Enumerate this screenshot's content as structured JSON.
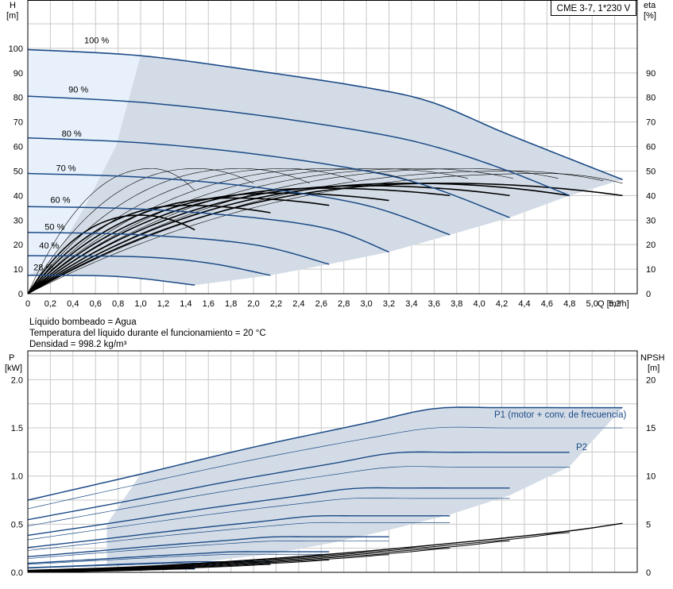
{
  "model_label": "CME 3-7, 1*230 V",
  "info_lines": [
    "Líquido bombeado = Agua",
    "Temperatura del líquido durante el funcionamiento = 20 °C",
    "Densidad = 998.2 kg/m³"
  ],
  "colors": {
    "curve": "#1b4a86",
    "area": "#d3dce6",
    "area_light": "#e8f1fb",
    "grid": "#c8c8c8",
    "eff": "#000000"
  },
  "chart_data": [
    {
      "type": "line",
      "name": "head",
      "xlabel": "Q [m³/h]",
      "ylabel_left": [
        "H",
        "[m]"
      ],
      "ylabel_right": [
        "eta",
        "[%]"
      ],
      "xlim": [
        0,
        5.4
      ],
      "ylim": [
        0,
        110
      ],
      "x_ticks": [
        "0",
        "0,2",
        "0,4",
        "0,6",
        "0,8",
        "1,0",
        "1,2",
        "1,4",
        "1,6",
        "1,8",
        "2,0",
        "2,2",
        "2,4",
        "2,6",
        "2,8",
        "3,0",
        "3,2",
        "3,4",
        "3,6",
        "3,8",
        "4,0",
        "4,2",
        "4,4",
        "4,6",
        "4,8",
        "5,0",
        "5,2"
      ],
      "y_ticks_left": [
        0,
        10,
        20,
        30,
        40,
        50,
        60,
        70,
        80,
        90,
        100
      ],
      "y_ticks_right": [
        0,
        10,
        20,
        30,
        40,
        50,
        60,
        70,
        80,
        90
      ],
      "grid": true,
      "speed_labels": [
        {
          "text": "100 %",
          "x": 0.5,
          "y": 102
        },
        {
          "text": "90 %",
          "x": 0.36,
          "y": 82
        },
        {
          "text": "80 %",
          "x": 0.3,
          "y": 64
        },
        {
          "text": "70 %",
          "x": 0.25,
          "y": 50
        },
        {
          "text": "60 %",
          "x": 0.2,
          "y": 37
        },
        {
          "text": "50 %",
          "x": 0.15,
          "y": 26
        },
        {
          "text": "40 %",
          "x": 0.1,
          "y": 18.5
        },
        {
          "text": "28 %",
          "x": 0.05,
          "y": 9.5
        }
      ],
      "series": [
        {
          "name": "100 %",
          "x": [
            0,
            1.0,
            2.0,
            3.0,
            3.58,
            4.2,
            4.8,
            5.27
          ],
          "y": [
            99.5,
            97,
            91,
            84,
            78,
            66,
            55,
            46.5
          ]
        },
        {
          "name": "90 %",
          "x": [
            0,
            1.0,
            2.0,
            3.0,
            3.6,
            4.2,
            4.8
          ],
          "y": [
            80.5,
            78,
            73,
            66,
            60,
            51,
            40
          ]
        },
        {
          "name": "80 %",
          "x": [
            0,
            1.0,
            2.0,
            3.0,
            3.6,
            4.27
          ],
          "y": [
            63.5,
            61.5,
            57,
            50,
            43,
            31
          ]
        },
        {
          "name": "70 %",
          "x": [
            0,
            1.0,
            2.0,
            3.0,
            3.74
          ],
          "y": [
            49,
            47.5,
            43.5,
            36,
            24
          ]
        },
        {
          "name": "60 %",
          "x": [
            0,
            1.0,
            2.0,
            2.7,
            3.2
          ],
          "y": [
            35.5,
            34.5,
            31,
            26,
            17
          ]
        },
        {
          "name": "50 %",
          "x": [
            0,
            1.0,
            2.0,
            2.67
          ],
          "y": [
            25,
            24,
            20,
            12
          ]
        },
        {
          "name": "40 %",
          "x": [
            0,
            1.0,
            1.6,
            2.15
          ],
          "y": [
            15.5,
            15,
            12.5,
            7.5
          ]
        },
        {
          "name": "28 %",
          "x": [
            0,
            0.8,
            1.48
          ],
          "y": [
            7.5,
            7,
            3.5
          ]
        }
      ],
      "efficiency_curves": [
        {
          "peak_q": 1.1,
          "peak_eta": 51,
          "qmax": 1.48,
          "eta_end": 42
        },
        {
          "peak_q": 1.5,
          "peak_eta": 51,
          "qmax": 2.0,
          "eta_end": 45
        },
        {
          "peak_q": 1.9,
          "peak_eta": 51,
          "qmax": 2.5,
          "eta_end": 45
        },
        {
          "peak_q": 2.3,
          "peak_eta": 51,
          "qmax": 2.9,
          "eta_end": 46
        },
        {
          "peak_q": 2.7,
          "peak_eta": 51,
          "qmax": 3.4,
          "eta_end": 46
        },
        {
          "peak_q": 3.1,
          "peak_eta": 51,
          "qmax": 3.9,
          "eta_end": 47
        },
        {
          "peak_q": 3.5,
          "peak_eta": 51,
          "qmax": 4.3,
          "eta_end": 47
        },
        {
          "peak_q": 3.9,
          "peak_eta": 51,
          "qmax": 4.7,
          "eta_end": 47
        },
        {
          "peak_q": 4.3,
          "peak_eta": 50,
          "qmax": 5.1,
          "eta_end": 46
        },
        {
          "peak_q": 4.6,
          "peak_eta": 49,
          "qmax": 5.27,
          "eta_end": 45
        },
        {
          "peak_q": 1.0,
          "peak_eta": 32,
          "qmax": 1.48,
          "eta_end": 26,
          "bold": true
        },
        {
          "peak_q": 1.4,
          "peak_eta": 36,
          "qmax": 2.15,
          "eta_end": 33,
          "bold": true
        },
        {
          "peak_q": 1.8,
          "peak_eta": 39,
          "qmax": 2.67,
          "eta_end": 36,
          "bold": true
        },
        {
          "peak_q": 2.2,
          "peak_eta": 41,
          "qmax": 3.2,
          "eta_end": 38,
          "bold": true
        },
        {
          "peak_q": 2.6,
          "peak_eta": 43,
          "qmax": 3.74,
          "eta_end": 40,
          "bold": true
        },
        {
          "peak_q": 3.0,
          "peak_eta": 44,
          "qmax": 4.27,
          "eta_end": 40,
          "bold": true
        },
        {
          "peak_q": 3.4,
          "peak_eta": 45,
          "qmax": 4.8,
          "eta_end": 40,
          "bold": true
        },
        {
          "peak_q": 3.7,
          "peak_eta": 45,
          "qmax": 5.27,
          "eta_end": 40,
          "bold": true
        }
      ]
    },
    {
      "type": "line",
      "name": "power",
      "ylabel_left": [
        "P",
        "[kW]"
      ],
      "ylabel_right": [
        "NPSH",
        "[m]"
      ],
      "xlim": [
        0,
        5.4
      ],
      "ylim": [
        0,
        2.3
      ],
      "y_ticks_left": [
        "0.0",
        "0.5",
        "1.0",
        "1.5",
        "2.0"
      ],
      "y_ticks_right": [
        0,
        5,
        10,
        15,
        20
      ],
      "grid": true,
      "annotations": [
        "P1 (motor + conv. de frecuencia)",
        "P2"
      ],
      "series": [
        {
          "name": "P1",
          "x": [
            0,
            1.0,
            2.0,
            3.0,
            3.6,
            4.2,
            4.8,
            5.27
          ],
          "y": [
            0.75,
            1.02,
            1.3,
            1.55,
            1.7,
            1.71,
            1.71,
            1.71
          ]
        },
        {
          "name": "P2",
          "x": [
            0,
            1.0,
            2.0,
            3.0,
            3.6,
            4.2,
            4.8,
            5.27
          ],
          "y": [
            0.66,
            0.92,
            1.17,
            1.39,
            1.5,
            1.5,
            1.5,
            1.5
          ]
        }
      ],
      "npsh": {
        "x": [
          0,
          1.0,
          2.0,
          3.0,
          4.0,
          4.8,
          5.27
        ],
        "y": [
          0.2,
          0.6,
          1.3,
          2.2,
          3.3,
          4.3,
          5.1
        ]
      }
    }
  ]
}
